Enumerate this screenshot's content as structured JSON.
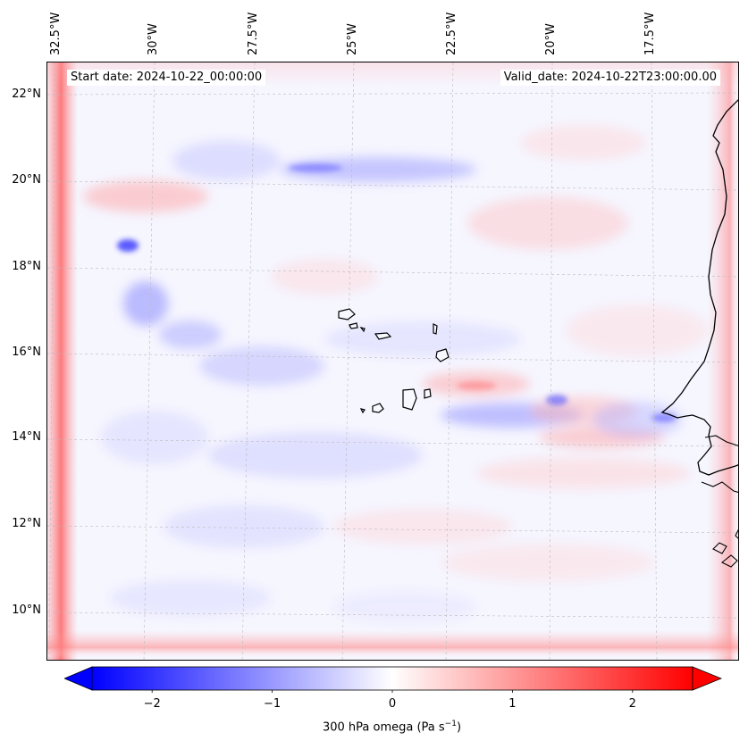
{
  "map": {
    "start_label": "Start date: 2024-10-22_00:00:00",
    "valid_label": "Valid_date: 2024-10-22T23:00:00.00",
    "longitude_labels": [
      "32.5°W",
      "30°W",
      "27.5°W",
      "25°W",
      "22.5°W",
      "20°W",
      "17.5°W"
    ],
    "latitude_labels": [
      "22°N",
      "20°N",
      "18°N",
      "16°N",
      "14°N",
      "12°N",
      "10°N"
    ]
  },
  "colorbar": {
    "ticks": [
      "−2",
      "−1",
      "0",
      "1",
      "2"
    ],
    "tick_values": [
      -2,
      -1,
      0,
      1,
      2
    ],
    "range": [
      -2.5,
      2.5
    ],
    "label_prefix": "300 hPa omega (Pa s",
    "label_exponent": "−1",
    "label_suffix": ")",
    "colors": {
      "negative": "#0000ff",
      "zero": "#ffffff",
      "positive": "#ff0000"
    }
  },
  "colors": {
    "land_outline": "#000000",
    "grid": "#bbbbbb"
  }
}
